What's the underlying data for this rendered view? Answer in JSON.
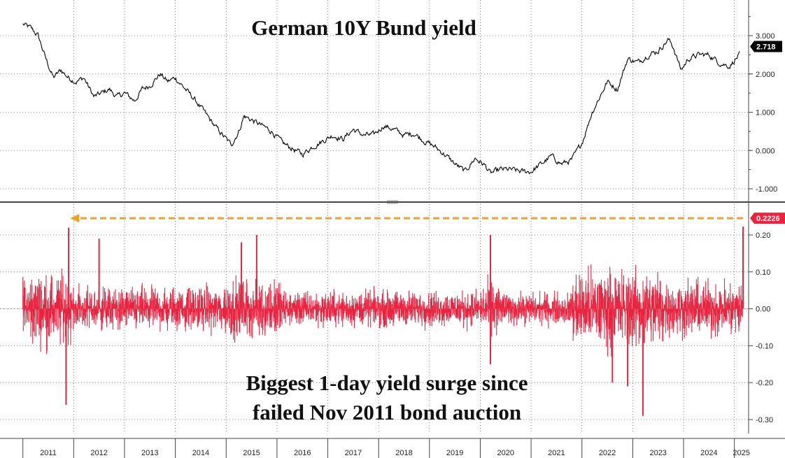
{
  "chart_data": [
    {
      "type": "line",
      "title": "German 10Y Bund yield",
      "ylim": [
        -1.2,
        3.9
      ],
      "yticks": [
        "3.000",
        "2.000",
        "1.000",
        "0.000",
        "-1.000"
      ],
      "last_value": 2.718,
      "last_value_label": "2.718",
      "grid": true,
      "series": [
        {
          "x": [
            2011.0,
            2011.15,
            2011.3,
            2011.45,
            2011.6,
            2011.75,
            2011.9,
            2012.05,
            2012.2,
            2012.4,
            2012.55,
            2012.7,
            2012.85,
            2013.0,
            2013.2,
            2013.35,
            2013.5,
            2013.7,
            2013.85,
            2014.0,
            2014.2,
            2014.4,
            2014.6,
            2014.8,
            2015.0,
            2015.1,
            2015.25,
            2015.35,
            2015.5,
            2015.7,
            2015.9,
            2016.1,
            2016.3,
            2016.5,
            2016.7,
            2016.9,
            2017.1,
            2017.3,
            2017.5,
            2017.7,
            2017.9,
            2018.1,
            2018.3,
            2018.5,
            2018.7,
            2018.9,
            2019.1,
            2019.3,
            2019.5,
            2019.7,
            2019.9,
            2020.1,
            2020.2,
            2020.4,
            2020.6,
            2020.8,
            2021.0,
            2021.2,
            2021.4,
            2021.6,
            2021.8,
            2022.0,
            2022.2,
            2022.35,
            2022.5,
            2022.7,
            2022.9,
            2023.1,
            2023.3,
            2023.5,
            2023.7,
            2023.8,
            2023.95,
            2024.1,
            2024.3,
            2024.5,
            2024.7,
            2024.9,
            2025.1
          ],
          "y": [
            3.3,
            3.2,
            3.0,
            2.4,
            1.9,
            2.1,
            1.9,
            1.8,
            1.9,
            1.4,
            1.5,
            1.6,
            1.4,
            1.5,
            1.3,
            1.6,
            1.7,
            2.0,
            1.8,
            1.9,
            1.6,
            1.3,
            0.95,
            0.6,
            0.3,
            0.15,
            0.5,
            0.9,
            0.8,
            0.65,
            0.5,
            0.2,
            0.05,
            -0.1,
            0.1,
            0.25,
            0.4,
            0.3,
            0.55,
            0.4,
            0.4,
            0.65,
            0.55,
            0.4,
            0.45,
            0.25,
            0.1,
            -0.1,
            -0.35,
            -0.55,
            -0.2,
            -0.4,
            -0.6,
            -0.5,
            -0.5,
            -0.55,
            -0.55,
            -0.35,
            -0.15,
            -0.35,
            -0.25,
            0.2,
            1.0,
            1.4,
            1.8,
            1.6,
            2.4,
            2.3,
            2.5,
            2.6,
            2.9,
            2.7,
            2.1,
            2.4,
            2.5,
            2.5,
            2.3,
            2.2,
            2.5
          ]
        }
      ]
    },
    {
      "type": "bar",
      "title": "Biggest 1-day yield surge since failed Nov 2011 bond auction",
      "ylim": [
        -0.33,
        0.26
      ],
      "yticks": [
        "0.20",
        "0.10",
        "0.00",
        "-0.10",
        "-0.20",
        "-0.30"
      ],
      "last_value": 0.2226,
      "last_value_label": "0.2226",
      "annotation": "dashed arrow from 2025 spike (0.2226) back to Nov 2011 spike",
      "spikes": [
        {
          "x": 2011.9,
          "value": 0.22
        },
        {
          "x": 2011.85,
          "value": -0.26
        },
        {
          "x": 2012.5,
          "value": 0.19
        },
        {
          "x": 2015.3,
          "value": 0.18
        },
        {
          "x": 2015.6,
          "value": 0.2
        },
        {
          "x": 2020.2,
          "value": 0.2
        },
        {
          "x": 2020.2,
          "value": -0.15
        },
        {
          "x": 2022.6,
          "value": -0.2
        },
        {
          "x": 2022.9,
          "value": -0.21
        },
        {
          "x": 2023.2,
          "value": -0.29
        },
        {
          "x": 2025.17,
          "value": 0.2226
        }
      ],
      "volatility_bands": [
        {
          "from": 2011.0,
          "to": 2011.95,
          "amp": 0.09
        },
        {
          "from": 2011.95,
          "to": 2014.9,
          "amp": 0.055
        },
        {
          "from": 2014.9,
          "to": 2016.1,
          "amp": 0.075
        },
        {
          "from": 2016.1,
          "to": 2020.05,
          "amp": 0.045
        },
        {
          "from": 2020.05,
          "to": 2020.4,
          "amp": 0.07
        },
        {
          "from": 2020.4,
          "to": 2021.8,
          "amp": 0.04
        },
        {
          "from": 2021.8,
          "to": 2023.6,
          "amp": 0.1
        },
        {
          "from": 2023.6,
          "to": 2025.15,
          "amp": 0.07
        }
      ]
    }
  ],
  "x_axis": {
    "labels": [
      "2011",
      "2012",
      "2013",
      "2014",
      "2015",
      "2016",
      "2017",
      "2018",
      "2019",
      "2020",
      "2021",
      "2022",
      "2023",
      "2024",
      "2025"
    ],
    "range": [
      2010.55,
      2025.28
    ]
  },
  "colors": {
    "line": "#000000",
    "bars": "#e8243f",
    "arrow": "#f4a020",
    "badge_top": "#000000",
    "badge_bottom": "#e8243f",
    "grid": "#555555"
  }
}
